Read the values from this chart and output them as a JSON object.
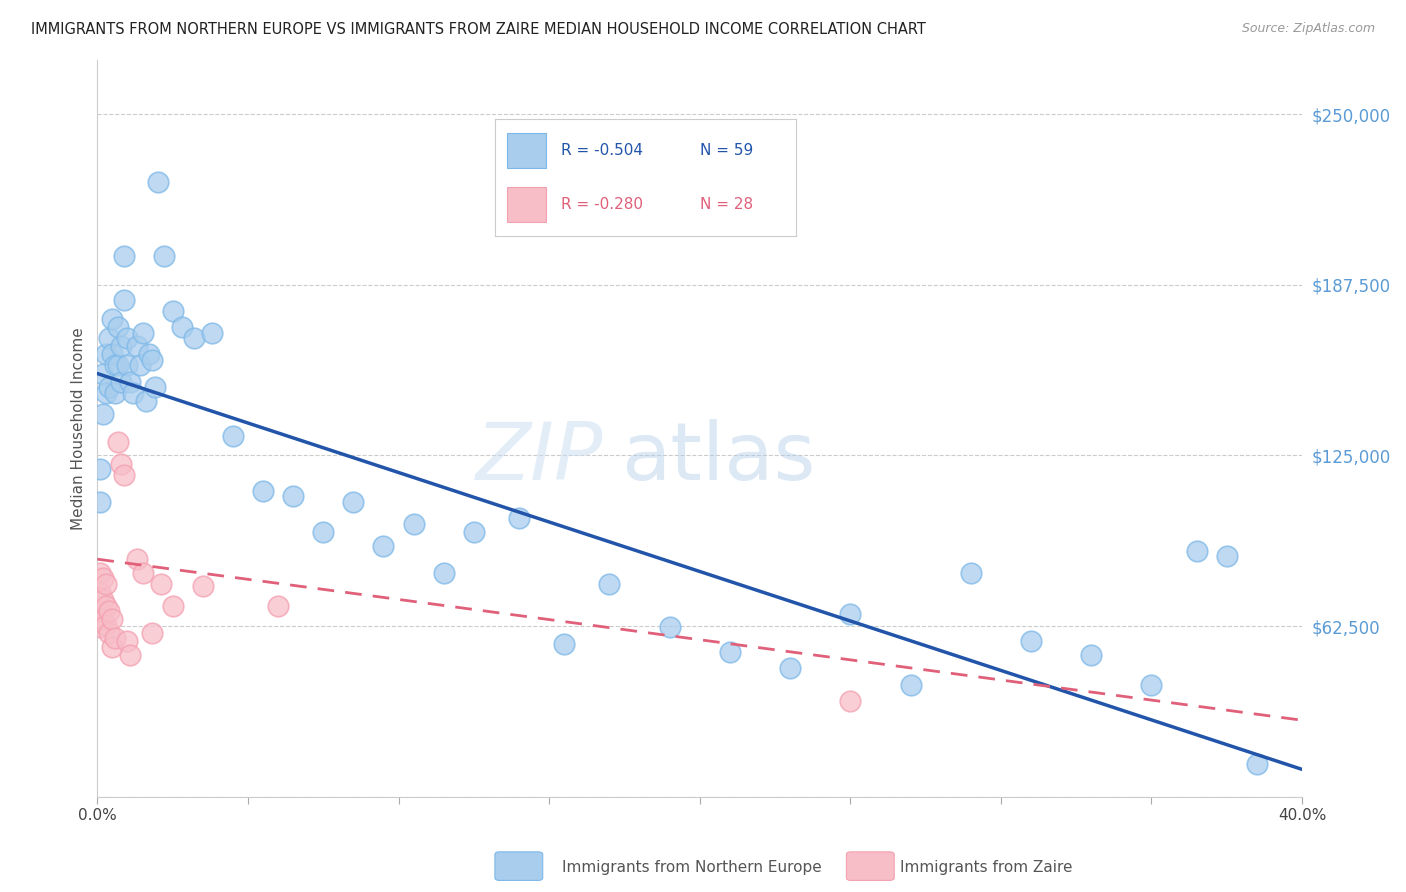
{
  "title": "IMMIGRANTS FROM NORTHERN EUROPE VS IMMIGRANTS FROM ZAIRE MEDIAN HOUSEHOLD INCOME CORRELATION CHART",
  "source": "Source: ZipAtlas.com",
  "ylabel": "Median Household Income",
  "y_ticks": [
    0,
    62500,
    125000,
    187500,
    250000
  ],
  "y_tick_labels": [
    "",
    "$62,500",
    "$125,000",
    "$187,500",
    "$250,000"
  ],
  "x_min": 0.0,
  "x_max": 0.4,
  "y_min": 0,
  "y_max": 270000,
  "legend_r1": "R = -0.504",
  "legend_n1": "N = 59",
  "legend_r2": "R = -0.280",
  "legend_n2": "N = 28",
  "legend_label1": "Immigrants from Northern Europe",
  "legend_label2": "Immigrants from Zaire",
  "blue_color": "#A8CDED",
  "blue_edge_color": "#7EB8E8",
  "blue_line_color": "#2255AA",
  "pink_color": "#F7BEC8",
  "pink_edge_color": "#F4A0B0",
  "pink_line_color": "#E0607A",
  "watermark_zip": "ZIP",
  "watermark_atlas": "atlas",
  "blue_line_y0": 155000,
  "blue_line_y1": 10000,
  "pink_line_y0": 87000,
  "pink_line_y1": 28000,
  "blue_dots_x": [
    0.001,
    0.001,
    0.002,
    0.002,
    0.003,
    0.003,
    0.004,
    0.004,
    0.005,
    0.005,
    0.006,
    0.006,
    0.007,
    0.007,
    0.008,
    0.008,
    0.009,
    0.009,
    0.01,
    0.01,
    0.011,
    0.012,
    0.013,
    0.014,
    0.015,
    0.016,
    0.017,
    0.018,
    0.019,
    0.02,
    0.022,
    0.025,
    0.028,
    0.032,
    0.038,
    0.045,
    0.055,
    0.065,
    0.075,
    0.085,
    0.095,
    0.105,
    0.115,
    0.125,
    0.14,
    0.155,
    0.17,
    0.19,
    0.21,
    0.23,
    0.25,
    0.27,
    0.29,
    0.31,
    0.33,
    0.35,
    0.365,
    0.375,
    0.385
  ],
  "blue_dots_y": [
    120000,
    108000,
    155000,
    140000,
    162000,
    148000,
    168000,
    150000,
    175000,
    162000,
    158000,
    148000,
    172000,
    158000,
    165000,
    152000,
    198000,
    182000,
    168000,
    158000,
    152000,
    148000,
    165000,
    158000,
    170000,
    145000,
    162000,
    160000,
    150000,
    225000,
    198000,
    178000,
    172000,
    168000,
    170000,
    132000,
    112000,
    110000,
    97000,
    108000,
    92000,
    100000,
    82000,
    97000,
    102000,
    56000,
    78000,
    62000,
    53000,
    47000,
    67000,
    41000,
    82000,
    57000,
    52000,
    41000,
    90000,
    88000,
    12000
  ],
  "pink_dots_x": [
    0.001,
    0.001,
    0.001,
    0.001,
    0.002,
    0.002,
    0.002,
    0.003,
    0.003,
    0.003,
    0.004,
    0.004,
    0.005,
    0.005,
    0.006,
    0.007,
    0.008,
    0.009,
    0.01,
    0.011,
    0.013,
    0.015,
    0.018,
    0.021,
    0.025,
    0.035,
    0.06,
    0.25
  ],
  "pink_dots_y": [
    82000,
    75000,
    68000,
    62000,
    80000,
    72000,
    65000,
    78000,
    70000,
    63000,
    68000,
    60000,
    65000,
    55000,
    58000,
    130000,
    122000,
    118000,
    57000,
    52000,
    87000,
    82000,
    60000,
    78000,
    70000,
    77000,
    70000,
    35000
  ]
}
